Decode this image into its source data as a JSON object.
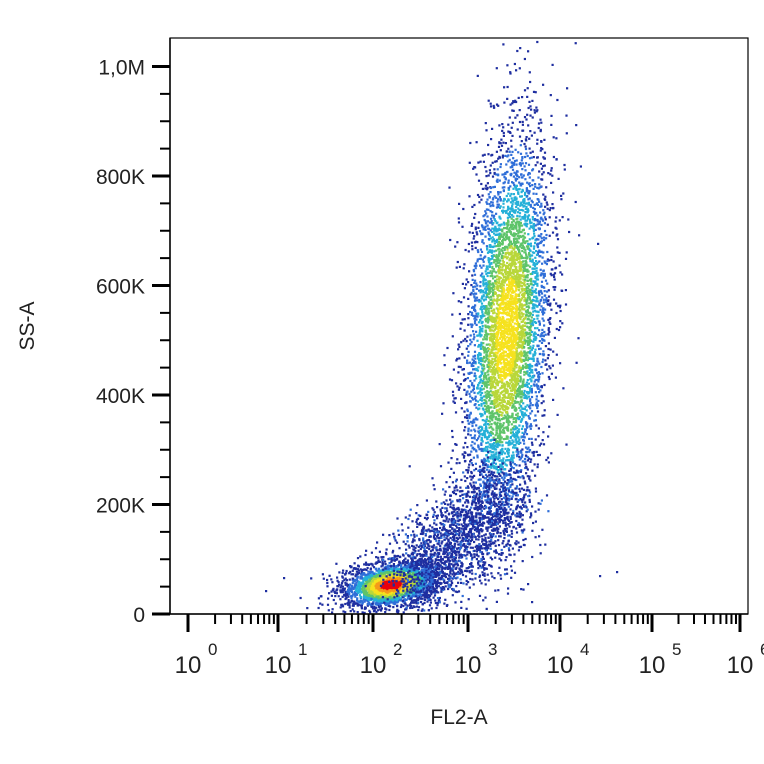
{
  "chart_data": {
    "type": "scatter",
    "plot_style": "flow cytometry density dot plot",
    "xlabel": "FL2-A",
    "ylabel": "SS-A",
    "x_scale": "log",
    "xlim": [
      1,
      1000000
    ],
    "ylim": [
      0,
      1050000
    ],
    "y_ticks": [
      {
        "value": 0,
        "label": "0"
      },
      {
        "value": 200000,
        "label": "200K"
      },
      {
        "value": 400000,
        "label": "400K"
      },
      {
        "value": 600000,
        "label": "600K"
      },
      {
        "value": 800000,
        "label": "800K"
      },
      {
        "value": 1000000,
        "label": "1,0M"
      }
    ],
    "x_ticks": [
      {
        "value": 1,
        "base": "10",
        "exp": "0"
      },
      {
        "value": 10,
        "base": "10",
        "exp": "1"
      },
      {
        "value": 100,
        "base": "10",
        "exp": "2"
      },
      {
        "value": 1000,
        "base": "10",
        "exp": "3"
      },
      {
        "value": 10000,
        "base": "10",
        "exp": "4"
      },
      {
        "value": 100000,
        "base": "10",
        "exp": "5"
      },
      {
        "value": 1000000,
        "base": "10",
        "exp": "6"
      }
    ],
    "populations": [
      {
        "name_hint": "low",
        "center_x": 150,
        "center_y": 55000,
        "count": 2600,
        "peak_color": "#e8000c"
      },
      {
        "name_hint": "high",
        "center_x": 2600,
        "center_y": 520000,
        "count": 5200,
        "peak_color": "#8cc63f"
      }
    ],
    "density_colors": [
      "#1e2ea0",
      "#2f6ed8",
      "#25b0d8",
      "#5ec46a",
      "#b9d73a",
      "#f6e21e",
      "#f59a1a",
      "#e8000c"
    ],
    "grid": false,
    "legend": "none"
  }
}
